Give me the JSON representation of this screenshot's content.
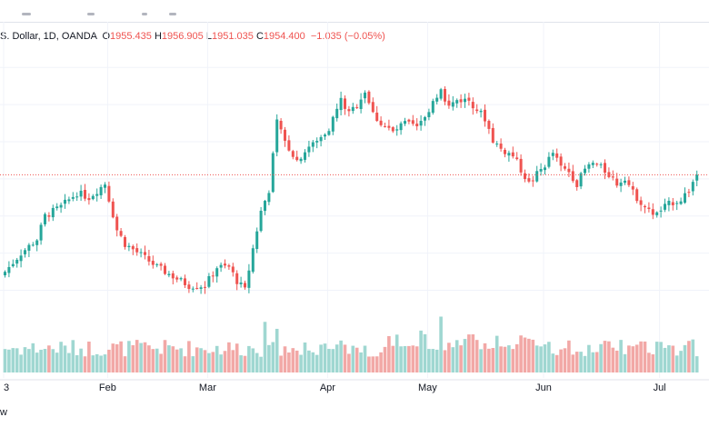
{
  "legend": {
    "symbol": "S. Dollar, 1D, OANDA",
    "o_label": "O",
    "o_value": "1955.435",
    "h_label": "H",
    "h_value": "1956.905",
    "l_label": "L",
    "l_value": "1951.035",
    "c_label": "C",
    "c_value": "1954.400",
    "change": "−1.035 (−0.05%)"
  },
  "footer": {
    "text": "w"
  },
  "colors": {
    "up": "#26a69a",
    "down": "#ef5350",
    "vol_up": "#9fd7d1",
    "vol_down": "#f2a8a6",
    "grid": "#f0f3fa",
    "price_line": "#ef5350",
    "axis_text": "#131722"
  },
  "chart_data": {
    "type": "candlestick",
    "x_ticks": [
      {
        "label": "3",
        "index": 0
      },
      {
        "label": "Feb",
        "index": 26
      },
      {
        "label": "Mar",
        "index": 51
      },
      {
        "label": "Apr",
        "index": 81
      },
      {
        "label": "May",
        "index": 106
      },
      {
        "label": "Jun",
        "index": 135
      },
      {
        "label": "Jul",
        "index": 164
      }
    ],
    "price_range": [
      1810,
      2080
    ],
    "current_price": 1954.4,
    "close_anchors": [
      [
        0,
        1850
      ],
      [
        4,
        1870
      ],
      [
        8,
        1885
      ],
      [
        10,
        1910
      ],
      [
        14,
        1920
      ],
      [
        18,
        1935
      ],
      [
        21,
        1930
      ],
      [
        25,
        1945
      ],
      [
        28,
        1895
      ],
      [
        30,
        1880
      ],
      [
        34,
        1868
      ],
      [
        38,
        1855
      ],
      [
        42,
        1845
      ],
      [
        46,
        1835
      ],
      [
        50,
        1835
      ],
      [
        53,
        1855
      ],
      [
        56,
        1855
      ],
      [
        58,
        1840
      ],
      [
        60,
        1830
      ],
      [
        62,
        1875
      ],
      [
        64,
        1915
      ],
      [
        66,
        1938
      ],
      [
        68,
        2010
      ],
      [
        70,
        1990
      ],
      [
        73,
        1970
      ],
      [
        76,
        1985
      ],
      [
        78,
        1990
      ],
      [
        81,
        2005
      ],
      [
        84,
        2035
      ],
      [
        86,
        2020
      ],
      [
        88,
        2030
      ],
      [
        90,
        2045
      ],
      [
        92,
        2020
      ],
      [
        94,
        2010
      ],
      [
        97,
        2000
      ],
      [
        100,
        2010
      ],
      [
        103,
        2005
      ],
      [
        105,
        2015
      ],
      [
        107,
        2035
      ],
      [
        109,
        2045
      ],
      [
        111,
        2028
      ],
      [
        113,
        2035
      ],
      [
        116,
        2035
      ],
      [
        118,
        2025
      ],
      [
        120,
        2015
      ],
      [
        122,
        1992
      ],
      [
        124,
        1982
      ],
      [
        127,
        1975
      ],
      [
        129,
        1960
      ],
      [
        131,
        1945
      ],
      [
        133,
        1955
      ],
      [
        135,
        1965
      ],
      [
        137,
        1978
      ],
      [
        139,
        1962
      ],
      [
        141,
        1958
      ],
      [
        143,
        1945
      ],
      [
        145,
        1960
      ],
      [
        147,
        1967
      ],
      [
        149,
        1962
      ],
      [
        151,
        1955
      ],
      [
        153,
        1945
      ],
      [
        155,
        1952
      ],
      [
        157,
        1935
      ],
      [
        159,
        1925
      ],
      [
        161,
        1915
      ],
      [
        163,
        1912
      ],
      [
        165,
        1920
      ],
      [
        167,
        1925
      ],
      [
        169,
        1928
      ],
      [
        171,
        1938
      ],
      [
        173,
        1955
      ]
    ],
    "volume_highlights": [
      {
        "index": 65,
        "value": 1.45
      },
      {
        "index": 68,
        "value": 1.25
      },
      {
        "index": 109,
        "value": 1.6
      },
      {
        "index": 104,
        "value": 1.2
      }
    ]
  }
}
